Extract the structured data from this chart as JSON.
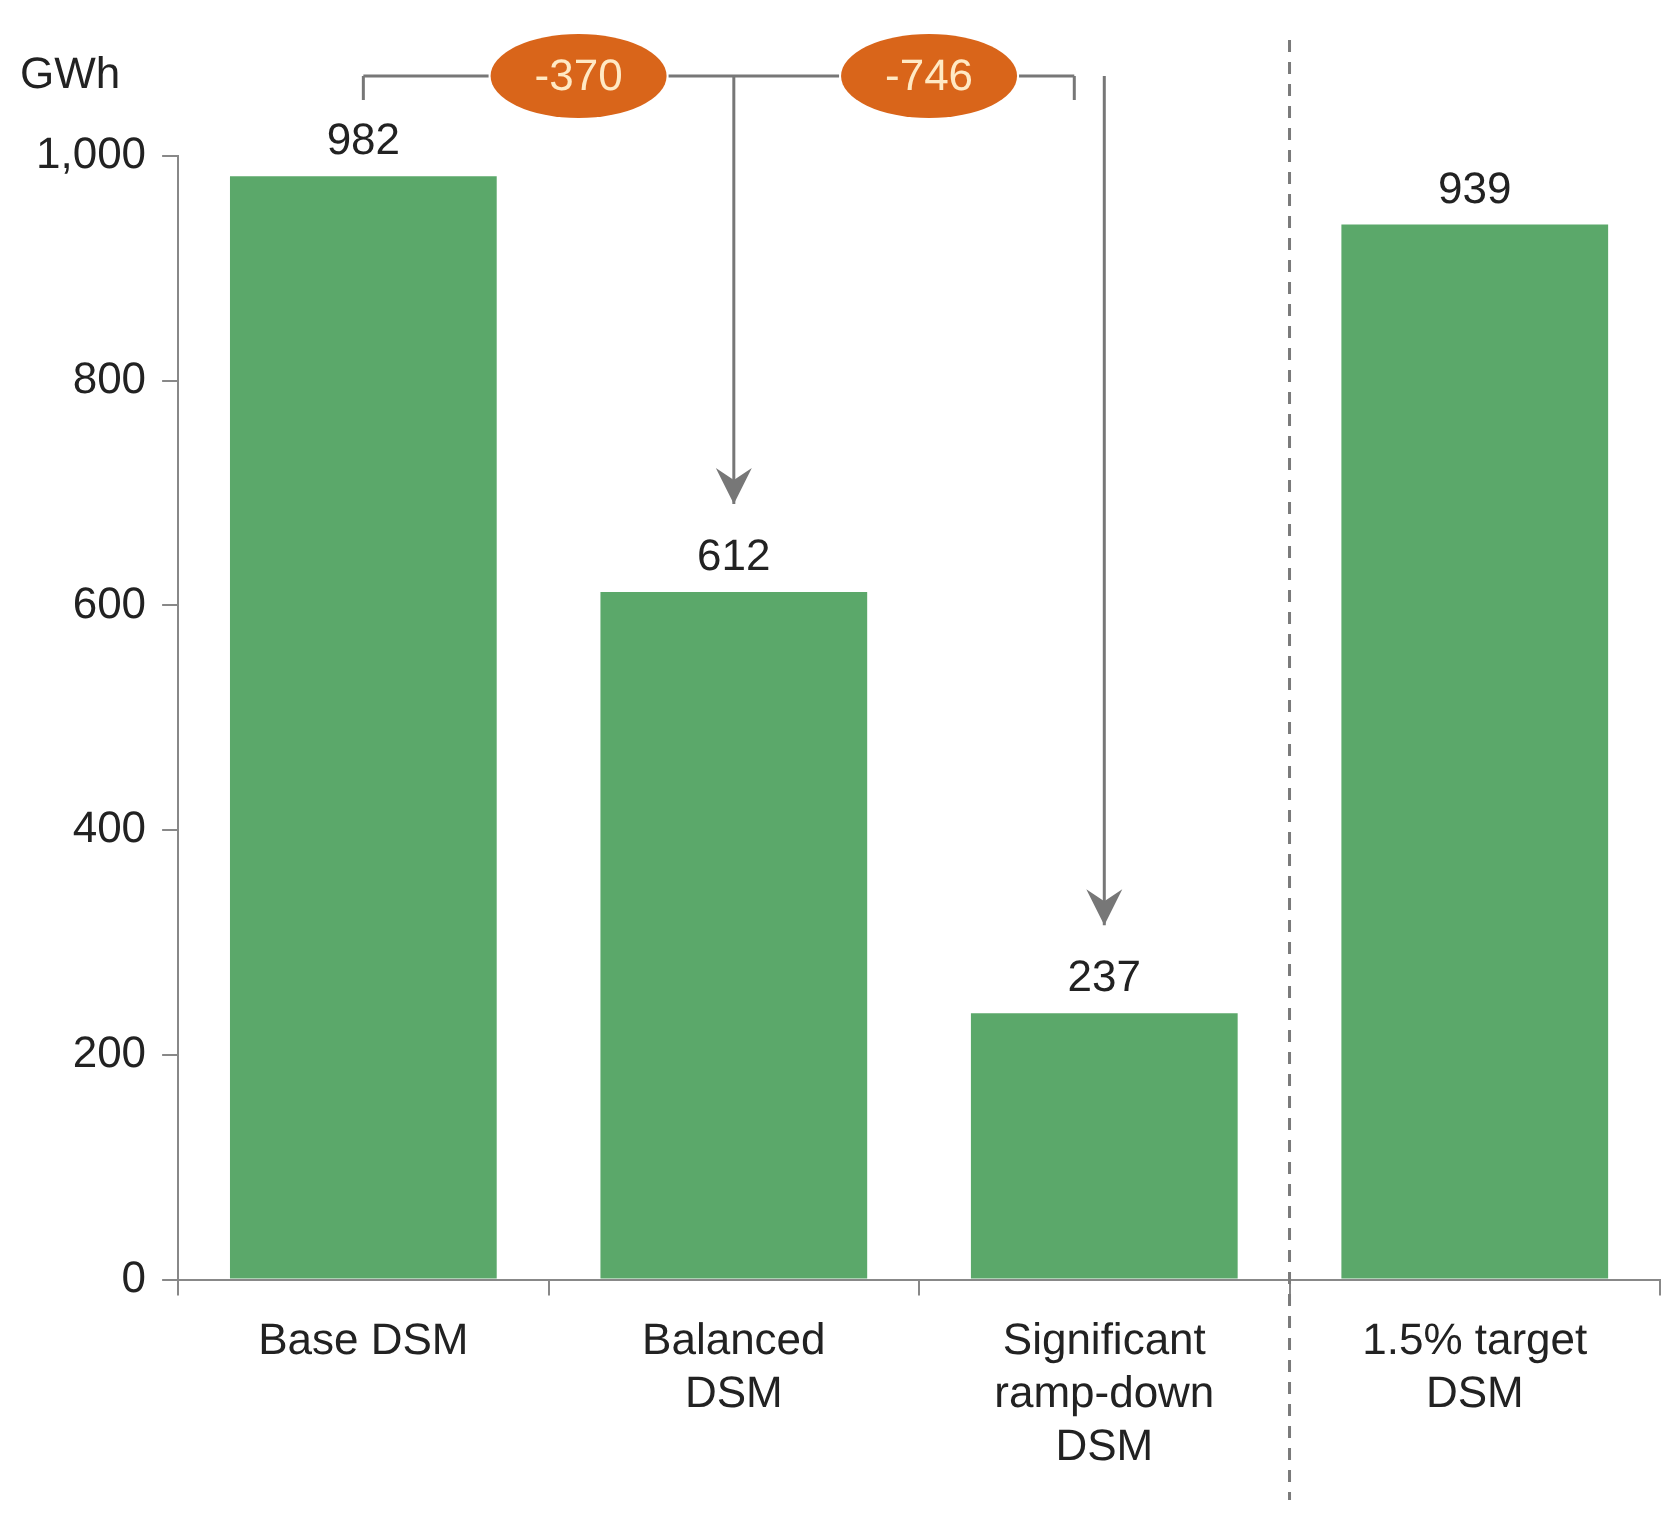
{
  "chart_data": {
    "type": "bar",
    "ylabel": "GWh",
    "categories": [
      "Base DSM",
      "Balanced DSM",
      "Significant ramp-down DSM",
      "1.5% target DSM"
    ],
    "values": [
      982,
      612,
      237,
      939
    ],
    "color": "#5ba86a",
    "ylim": [
      0,
      1000
    ],
    "yticks": [
      0,
      {
        "value": 200,
        "label": "200"
      },
      {
        "value": 400,
        "label": "400"
      },
      {
        "value": 600,
        "label": "600"
      },
      {
        "value": 800,
        "label": "800"
      },
      {
        "value": 1000,
        "label": "1,000"
      }
    ],
    "grid": false,
    "legend": false,
    "data_labels": true,
    "annotations": [
      "-370",
      "-746"
    ],
    "ref_lines": [
      {
        "axis": "x",
        "value": "1.5% target DSM",
        "color": "#7a7a7a",
        "line_style": "dashed"
      }
    ]
  }
}
